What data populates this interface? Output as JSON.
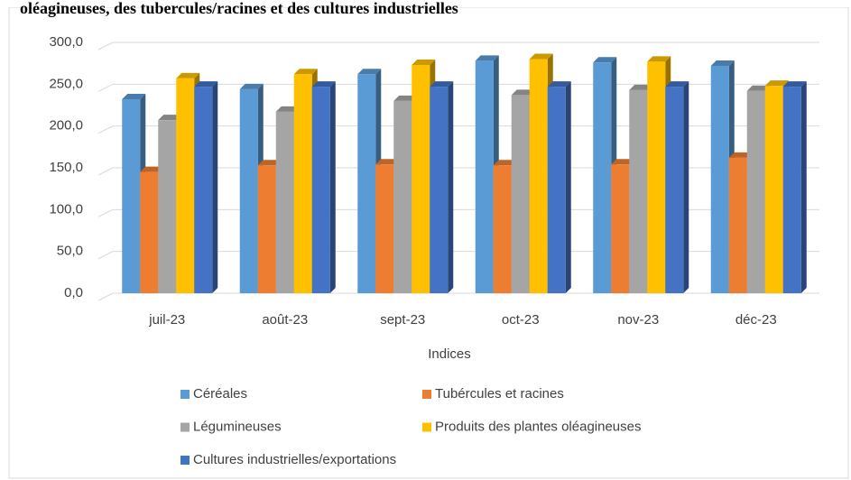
{
  "chart_data": {
    "type": "bar",
    "title": "oléagineuses, des tubercules/racines et des cultures industrielles",
    "x_label": "Indices",
    "categories": [
      "juil-23",
      "août-23",
      "sept-23",
      "oct-23",
      "nov-23",
      "déc-23"
    ],
    "series": [
      {
        "name": "Céréales",
        "color": "#5b9bd5",
        "values": [
          232,
          244,
          262,
          278,
          276,
          272
        ]
      },
      {
        "name": "Tubércules et racines",
        "color": "#ed7d31",
        "values": [
          145,
          153,
          154,
          153,
          154,
          162
        ]
      },
      {
        "name": "Légumineuses",
        "color": "#a5a5a5",
        "values": [
          207,
          217,
          230,
          237,
          243,
          242
        ]
      },
      {
        "name": "Produits des plantes oléagineuses",
        "color": "#ffc000",
        "values": [
          257,
          262,
          273,
          280,
          277,
          248
        ]
      },
      {
        "name": "Cultures industrielles/exportations",
        "color": "#4472c4",
        "values": [
          247,
          247,
          247,
          247,
          247,
          247
        ]
      }
    ],
    "ylim": [
      0,
      300
    ],
    "yticks": [
      {
        "value": 0,
        "label": "0,0"
      },
      {
        "value": 50,
        "label": "50,0"
      },
      {
        "value": 100,
        "label": "100,0"
      },
      {
        "value": 150,
        "label": "150,0"
      },
      {
        "value": 200,
        "label": "200,0"
      },
      {
        "value": 250,
        "label": "250,0"
      },
      {
        "value": 300,
        "label": "300,0"
      }
    ],
    "grid": true
  }
}
